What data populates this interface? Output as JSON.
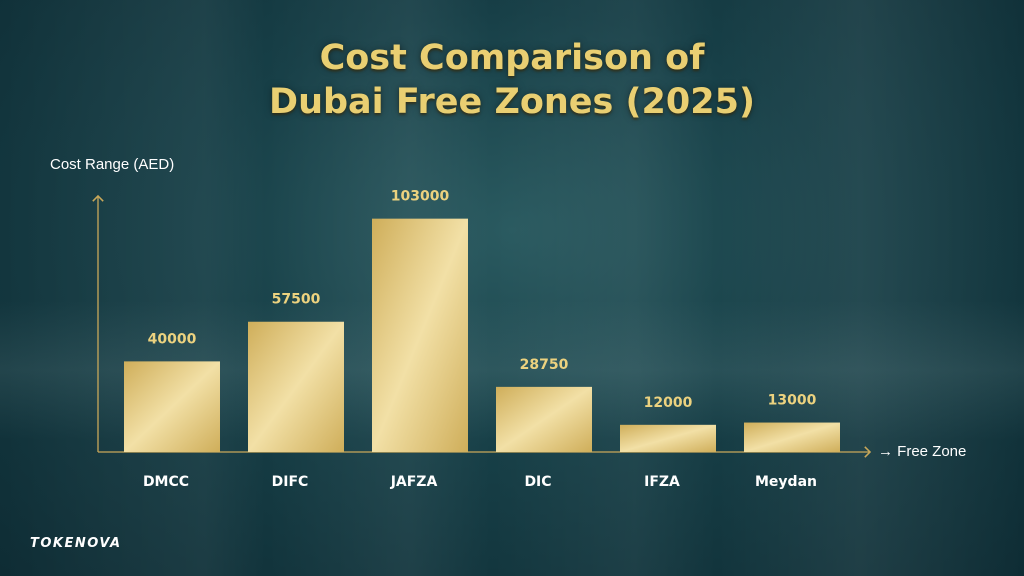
{
  "title_line1": "Cost Comparison of",
  "title_line2": "Dubai Free Zones (2025)",
  "brand": "TOKENOVA",
  "colors": {
    "bar_light": "#f2e0a6",
    "bar_dark": "#cfae5a",
    "axis": "#c9a85a",
    "value_label": "#ecd27f",
    "category_label": "#ffffff"
  },
  "chart_data": {
    "type": "bar",
    "title": "Cost Comparison of Dubai Free Zones (2025)",
    "ylabel": "Cost Range (AED)",
    "xlabel": "→ Free Zone",
    "categories": [
      "DMCC",
      "DIFC",
      "JAFZA",
      "DIC",
      "IFZA",
      "Meydan"
    ],
    "values": [
      40000,
      57500,
      103000,
      28750,
      12000,
      13000
    ],
    "value_labels": [
      "40000",
      "57500",
      "103000",
      "28750",
      "12000",
      "13000"
    ],
    "ylim": [
      0,
      113000
    ],
    "grid": false
  }
}
